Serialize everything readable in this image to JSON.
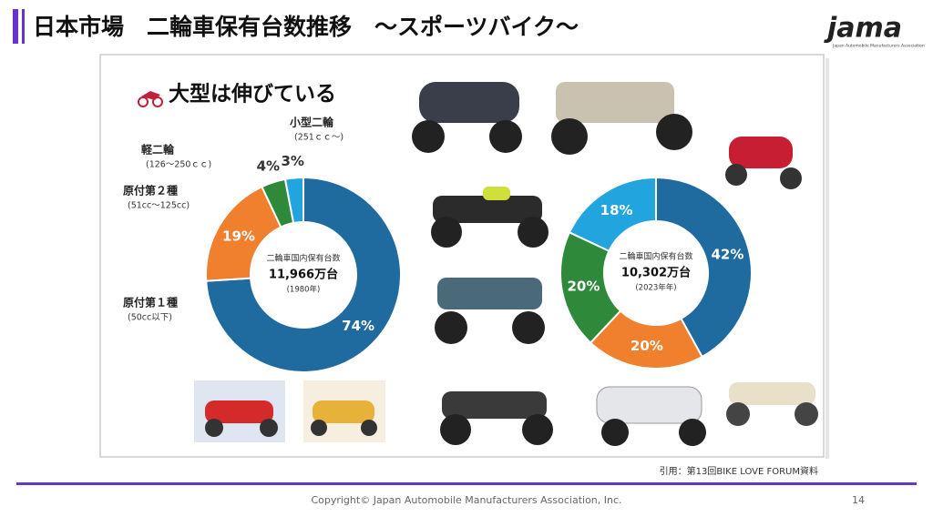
{
  "header": {
    "title": "日本市場　二輪車保有台数推移　～スポーツバイク～",
    "logo": "jama",
    "logo_sub": "Japan Automobile Manufacturers Association"
  },
  "panel": {
    "heading": "大型は伸びている",
    "source": "引用：第13回BIKE LOVE FORUM資料"
  },
  "footer": {
    "copyright": "Copyright© Japan Automobile Manufacturers Association, Inc.",
    "page": "14"
  },
  "chart_data": [
    {
      "type": "donut",
      "categories": [
        "原付第１種",
        "原付第２種",
        "軽二輪",
        "小型二輪"
      ],
      "category_notes": [
        "(50cc以下)",
        "(51cc～125cc)",
        "(126～250ｃｃ)",
        "(251ｃｃ～)"
      ],
      "values": [
        74,
        19,
        4,
        3
      ],
      "value_labels": [
        "74%",
        "19%",
        "4%",
        "3%"
      ],
      "colors": [
        "#1f6a9e",
        "#f0802e",
        "#2e8a3a",
        "#22a5df"
      ],
      "center_title": "二輪車国内保有台数",
      "center_value": "11,966万台",
      "center_year": "(1980年)"
    },
    {
      "type": "donut",
      "values": [
        42,
        20,
        20,
        18
      ],
      "value_labels": [
        "42%",
        "20%",
        "20%",
        "18%"
      ],
      "colors": [
        "#1f6a9e",
        "#f0802e",
        "#2e8a3a",
        "#22a5df"
      ],
      "center_title": "二輪車国内保有台数",
      "center_value": "10,302万台",
      "center_year": "(2023年年)"
    }
  ]
}
